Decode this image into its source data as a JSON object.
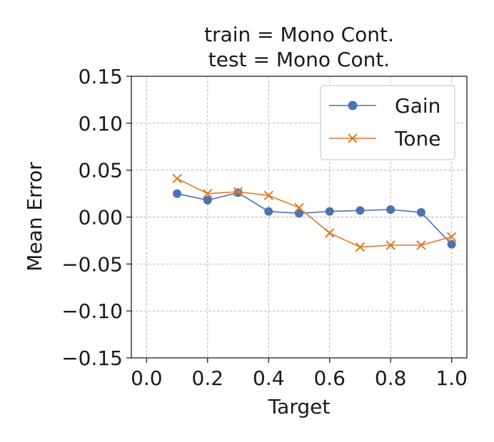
{
  "chart_data": {
    "type": "line",
    "title_lines": [
      "train = Mono Cont.",
      "test = Mono Cont."
    ],
    "xlabel": "Target",
    "ylabel": "Mean Error",
    "xlim": [
      -0.05,
      1.05
    ],
    "ylim": [
      -0.15,
      0.15
    ],
    "xticks": [
      0.0,
      0.2,
      0.4,
      0.6,
      0.8,
      1.0
    ],
    "xtick_labels": [
      "0.0",
      "0.2",
      "0.4",
      "0.6",
      "0.8",
      "1.0"
    ],
    "yticks": [
      0.15,
      0.1,
      0.05,
      0.0,
      -0.05,
      -0.1,
      -0.15
    ],
    "ytick_labels": [
      "0.15",
      "0.10",
      "0.05",
      "0.00",
      "−0.05",
      "−0.10",
      "−0.15"
    ],
    "grid": true,
    "legend_position": "top-right",
    "x": [
      0.1,
      0.2,
      0.3,
      0.4,
      0.5,
      0.6,
      0.7,
      0.8,
      0.9,
      1.0
    ],
    "series": [
      {
        "name": "Gain",
        "marker": "circle",
        "color": "#4c72b0",
        "values": [
          0.025,
          0.018,
          0.026,
          0.006,
          0.004,
          0.006,
          0.007,
          0.008,
          0.005,
          -0.029
        ]
      },
      {
        "name": "Tone",
        "marker": "x",
        "color": "#e07b28",
        "values": [
          0.041,
          0.025,
          0.027,
          0.023,
          0.01,
          -0.017,
          -0.032,
          -0.03,
          -0.03,
          -0.021
        ]
      }
    ]
  }
}
